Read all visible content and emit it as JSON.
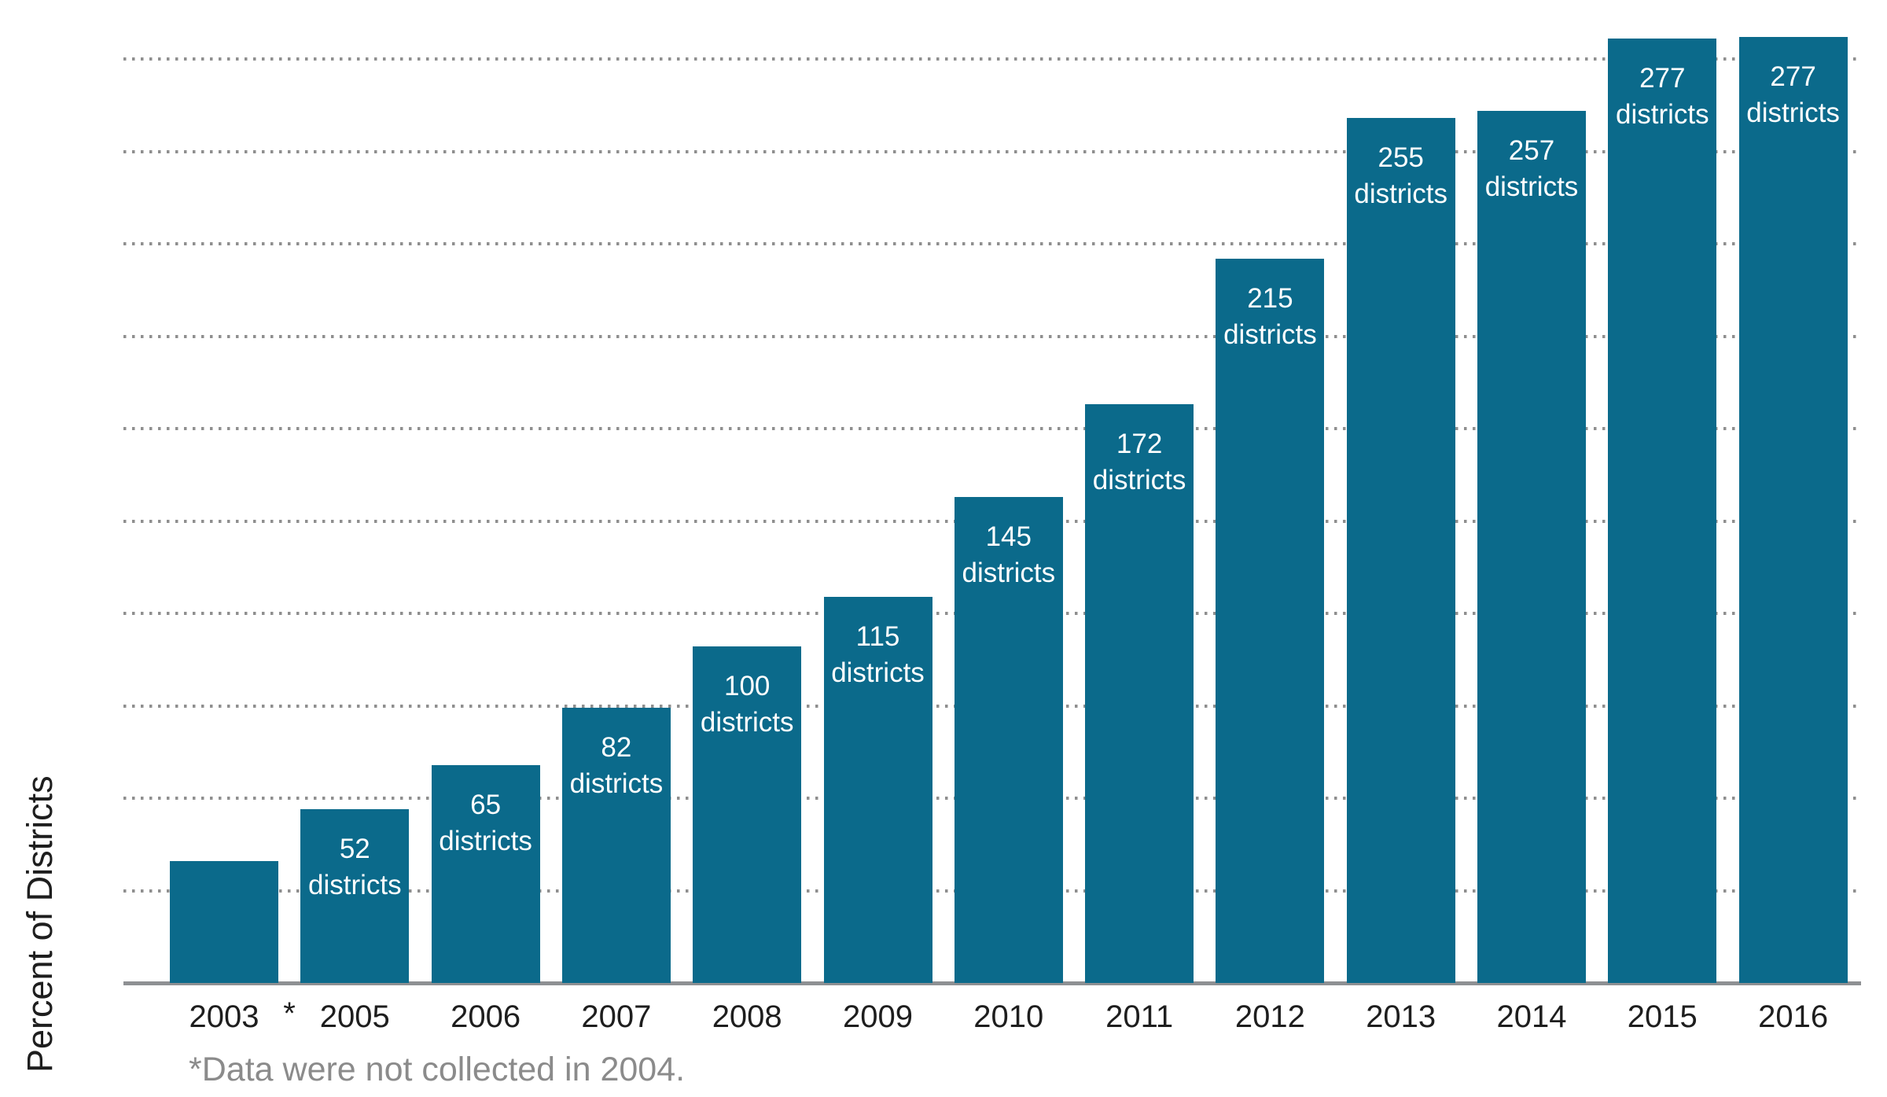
{
  "chart_data": {
    "type": "bar",
    "title": "",
    "xlabel": "",
    "ylabel": "Percent of Districts",
    "ylim": [
      0,
      52.5
    ],
    "yticks": [
      0,
      5,
      10,
      15,
      20,
      25,
      30,
      35,
      40,
      45,
      50
    ],
    "grid": "horizontal-dotted",
    "legend": "none",
    "categories": [
      "2003",
      "2005",
      "2006",
      "2007",
      "2008",
      "2009",
      "2010",
      "2011",
      "2012",
      "2013",
      "2014",
      "2015",
      "2016"
    ],
    "values": [
      6.6,
      9.4,
      11.8,
      14.9,
      18.2,
      20.9,
      26.3,
      31.3,
      39.2,
      46.8,
      47.2,
      51.1,
      51.2
    ],
    "value_labels": [
      "6.6%",
      "9.4%",
      "11.8%",
      "14.9%",
      "18.2%",
      "20.9%",
      "26.3%",
      "31.3%",
      "39.2%",
      "46.8%",
      "47.2%",
      "51.1%",
      "51.2%"
    ],
    "district_counts": [
      null,
      52,
      65,
      82,
      100,
      115,
      145,
      172,
      215,
      255,
      257,
      277,
      277
    ],
    "district_label_word": "districts",
    "missing_year_marker": "*",
    "footnote": "*Data were not collected in 2004.",
    "colors": {
      "bar": "#0b6a8b",
      "axis_line": "#8e9093",
      "gridline": "#8f8f8f",
      "dark_text": "#1e1e1e",
      "inside_text": "#ffffff",
      "footnote_text": "#8b8b8b"
    }
  }
}
